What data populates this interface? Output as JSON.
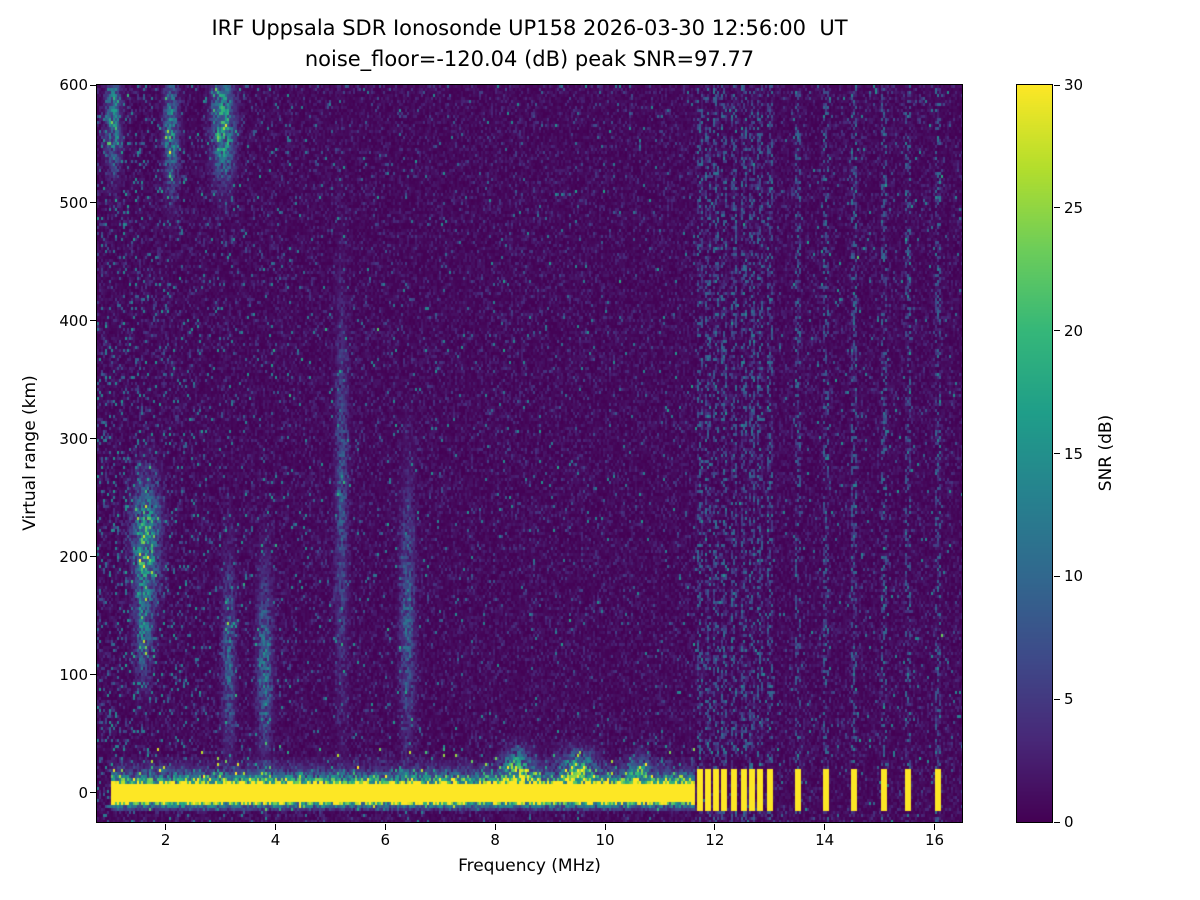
{
  "chart_data": {
    "type": "heatmap",
    "title": "IRF Uppsala SDR Ionosonde UP158 2026-03-30 12:56:00  UT",
    "subtitle": "noise_floor=-120.04 (dB) peak SNR=97.77",
    "xlabel": "Frequency (MHz)",
    "ylabel": "Virtual range (km)",
    "colorbar_label": "SNR (dB)",
    "colormap": "viridis",
    "noise_floor_db": -120.04,
    "peak_snr_db": 97.77,
    "x_range": [
      0.75,
      16.5
    ],
    "y_range": [
      -25,
      600
    ],
    "snr_range": [
      0,
      30
    ],
    "x_ticks": [
      2,
      4,
      6,
      8,
      10,
      12,
      14,
      16
    ],
    "y_ticks": [
      0,
      100,
      200,
      300,
      400,
      500,
      600
    ],
    "colorbar_ticks": [
      0,
      5,
      10,
      15,
      20,
      25,
      30
    ],
    "ground_pulse": {
      "freq_range_mhz": [
        1.0,
        11.62
      ],
      "center_km": 0,
      "core_half_width_km": 8,
      "fringe_km": 24,
      "snr_db": 30
    },
    "rfi_columns_mhz": [
      11.72,
      11.85,
      12.0,
      12.15,
      12.32,
      12.5,
      12.65,
      12.82,
      13.0,
      13.5,
      14.0,
      14.5,
      15.05,
      15.5,
      16.05
    ],
    "rfi": {
      "width_mhz": 0.055,
      "bottom_extent_km": [
        -14,
        22
      ],
      "bottom_snr_db": 30,
      "column_speckle_prob": 0.35,
      "column_boost_db": 4
    },
    "echo_regions": [
      {
        "f": 1.65,
        "df": 0.22,
        "y": 215,
        "dy": 45,
        "snr": 15
      },
      {
        "f": 1.6,
        "df": 0.15,
        "y": 140,
        "dy": 40,
        "snr": 9
      },
      {
        "f": 1.05,
        "df": 0.12,
        "y": 570,
        "dy": 40,
        "snr": 12
      },
      {
        "f": 2.1,
        "df": 0.12,
        "y": 560,
        "dy": 45,
        "snr": 11
      },
      {
        "f": 3.05,
        "df": 0.18,
        "y": 565,
        "dy": 40,
        "snr": 15
      },
      {
        "f": 3.15,
        "df": 0.1,
        "y": 120,
        "dy": 70,
        "snr": 8
      },
      {
        "f": 3.8,
        "df": 0.12,
        "y": 110,
        "dy": 70,
        "snr": 9
      },
      {
        "f": 5.2,
        "df": 0.1,
        "y": 250,
        "dy": 150,
        "snr": 6
      },
      {
        "f": 6.4,
        "df": 0.12,
        "y": 150,
        "dy": 100,
        "snr": 7
      },
      {
        "f": 8.4,
        "df": 0.25,
        "y": 22,
        "dy": 15,
        "snr": 14
      },
      {
        "f": 9.5,
        "df": 0.3,
        "y": 22,
        "dy": 14,
        "snr": 13
      },
      {
        "f": 10.6,
        "df": 0.2,
        "y": 20,
        "dy": 12,
        "snr": 10
      }
    ],
    "render": {
      "seed": 20260330,
      "noise_mean_db": 1.1,
      "speckle": {
        "base_prob": 0.018,
        "lowfreq_extra": 0.11,
        "lowfreq_decay_mhz": 1.7,
        "snr_mean_db": 7
      },
      "above_pulse_scatter": {
        "range_km": [
          8,
          40
        ],
        "prob": 0.3,
        "decay_km": 12,
        "snr_db": 8
      }
    }
  }
}
